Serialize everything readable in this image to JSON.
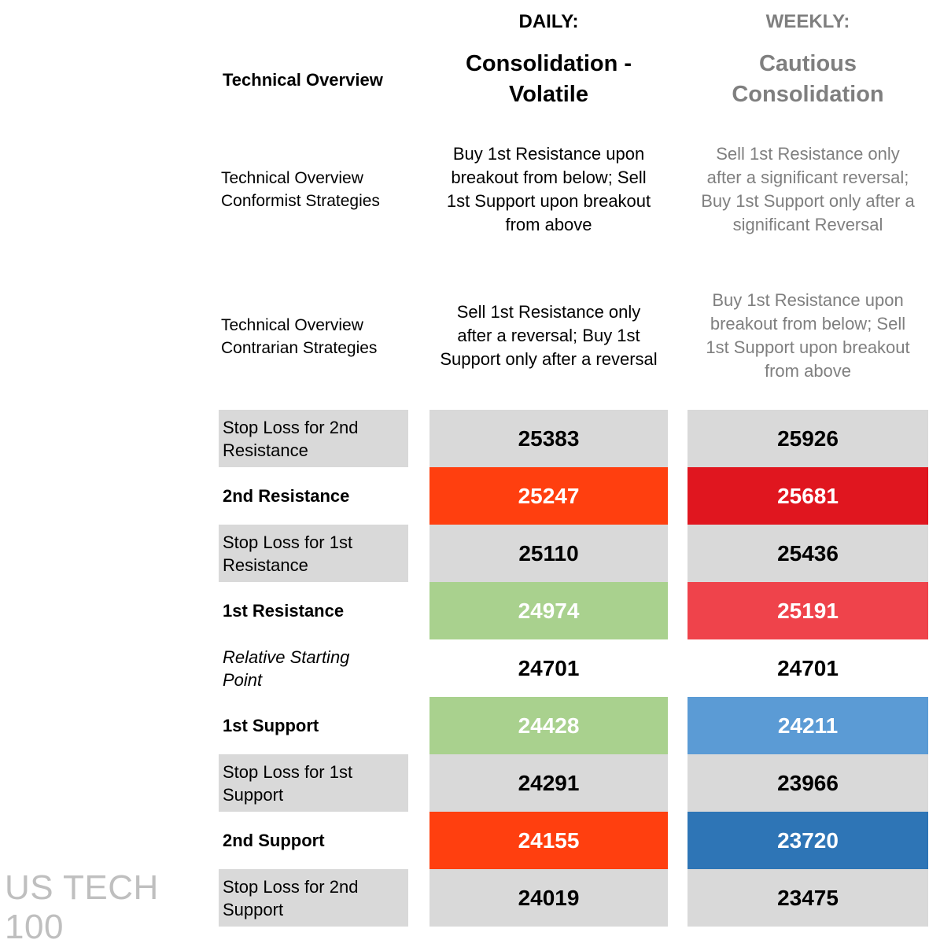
{
  "header": {
    "row_label": "Technical Overview",
    "daily": {
      "heading": "DAILY:",
      "title_line1": "Consolidation -",
      "title_line2": "Volatile"
    },
    "weekly": {
      "heading": "WEEKLY:",
      "title_line1": "Cautious",
      "title_line2": "Consolidation"
    }
  },
  "strategies": [
    {
      "label_line1": "Technical Overview",
      "label_line2": "Conformist Strategies",
      "daily": [
        "Buy 1st Resistance upon",
        "breakout from below; Sell",
        "1st Support upon breakout",
        "from above"
      ],
      "weekly": [
        "Sell 1st Resistance only",
        "after a significant reversal;",
        "Buy 1st Support only after a",
        "significant Reversal"
      ]
    },
    {
      "label_line1": "Technical Overview",
      "label_line2": "Contrarian Strategies",
      "daily": [
        "Sell 1st Resistance only",
        "after a reversal; Buy 1st",
        "Support only after a reversal"
      ],
      "weekly": [
        "Buy 1st Resistance upon",
        "breakout from below; Sell",
        "1st Support upon breakout",
        "from above"
      ]
    }
  ],
  "levels": [
    {
      "label_line1": "Stop Loss for 2nd",
      "label_line2": "Resistance",
      "daily": "25383",
      "weekly": "25926"
    },
    {
      "label_line1": "2nd Resistance",
      "label_line2": "",
      "daily": "25247",
      "weekly": "25681"
    },
    {
      "label_line1": "Stop Loss for 1st",
      "label_line2": "Resistance",
      "daily": "25110",
      "weekly": "25436"
    },
    {
      "label_line1": "1st Resistance",
      "label_line2": "",
      "daily": "24974",
      "weekly": "25191"
    },
    {
      "label_line1": "Relative Starting",
      "label_line2": "Point",
      "daily": "24701",
      "weekly": "24701"
    },
    {
      "label_line1": "1st Support",
      "label_line2": "",
      "daily": "24428",
      "weekly": "24211"
    },
    {
      "label_line1": "Stop Loss for 1st",
      "label_line2": "Support",
      "daily": "24291",
      "weekly": "23966"
    },
    {
      "label_line1": "2nd Support",
      "label_line2": "",
      "daily": "24155",
      "weekly": "23720"
    },
    {
      "label_line1": "Stop Loss for 2nd",
      "label_line2": "Support",
      "daily": "24019",
      "weekly": "23475"
    }
  ],
  "colors": {
    "grey": "#d9d9d9",
    "orange_red": "#ff3f0f",
    "dark_red": "#e0161f",
    "light_red": "#ef434b",
    "light_green": "#a9d18e",
    "light_blue": "#5b9bd5",
    "dark_blue": "#2e75b6",
    "weekly_text": "#7f7f7f"
  },
  "watermark": "US TECH 100"
}
